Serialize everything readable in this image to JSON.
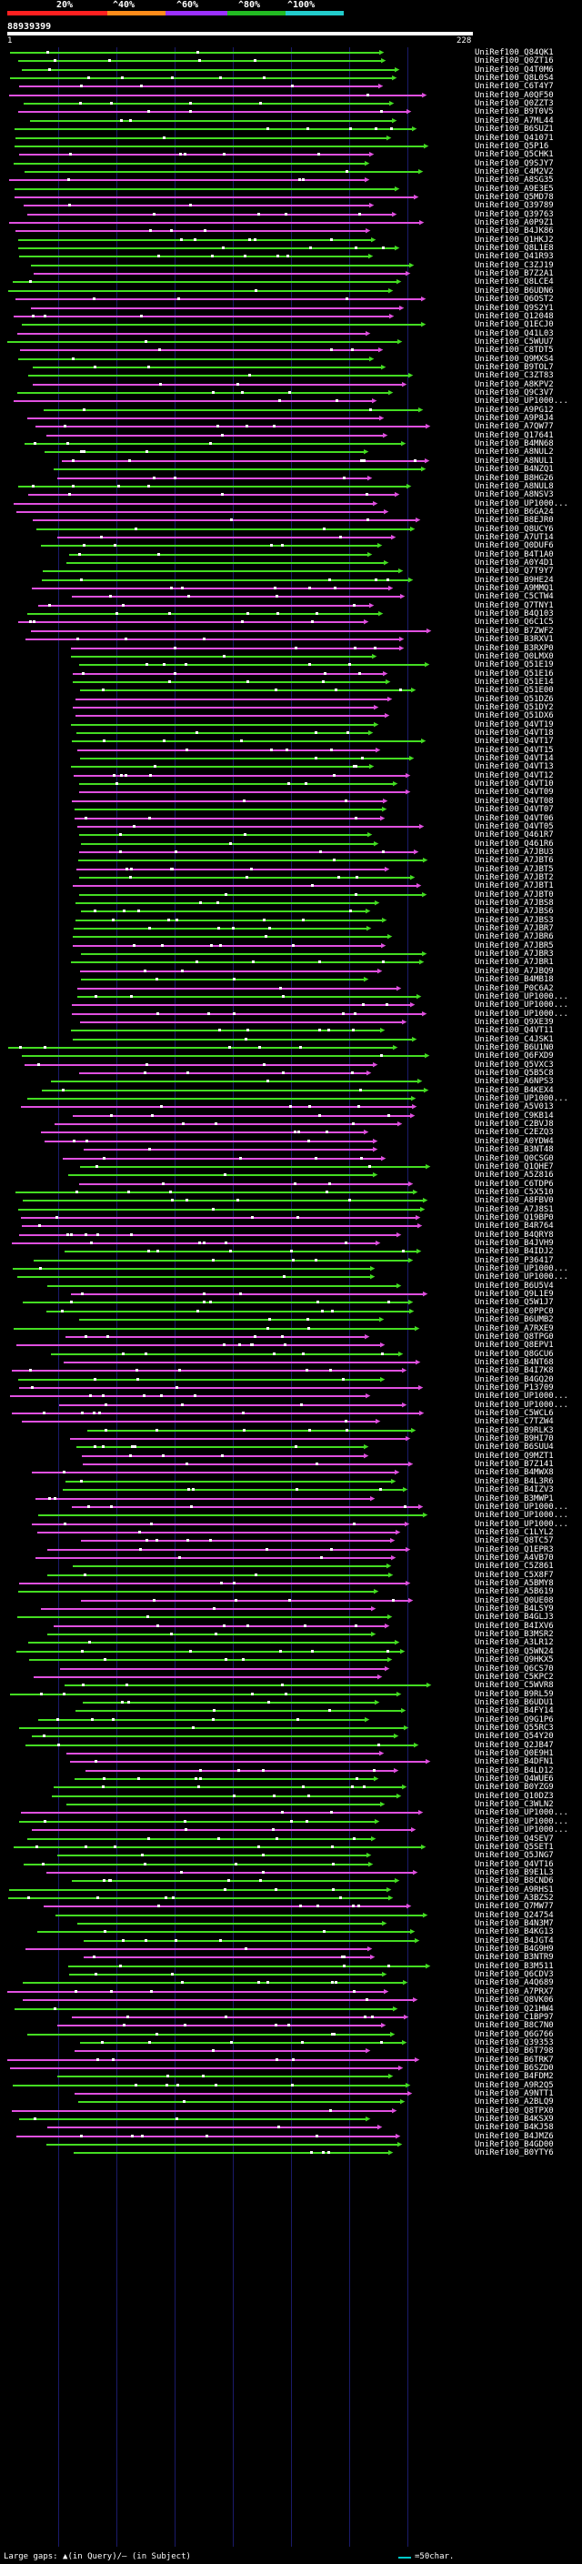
{
  "legend": {
    "labels": [
      "20%",
      "^40%",
      "^60%",
      "^80%",
      "^100%"
    ],
    "colors": [
      "#ff2020",
      "#ff8c1a",
      "#9b30ff",
      "#22bb22",
      "#22cccc"
    ]
  },
  "query": {
    "id": "88939399",
    "start": "1",
    "end": "228"
  },
  "footer": {
    "large_gaps_text": "Large gaps: ▲(in Query)/– (in Subject)",
    "scale_text": "=50char."
  },
  "hit_colors": {
    "green": "#44dd22",
    "magenta": "#e050e0",
    "gap": "#ffffff"
  },
  "hits": [
    "UniRef100_Q84QK1",
    "UniRef100_Q0ZT16",
    "UniRef100_Q4T0M6",
    "UniRef100_Q8L0S4",
    "UniRef100_C6T4Y7",
    "UniRef100_A0QF50",
    "UniRef100_Q0ZZT3",
    "UniRef100_B9T0V5",
    "UniRef100_A7ML44",
    "UniRef100_B6SUZ1",
    "UniRef100_Q41071",
    "UniRef100_Q5P16",
    "UniRef100_Q5CHK1",
    "UniRef100_Q9SJY7",
    "UniRef100_C4M2V2",
    "UniRef100_A8SG35",
    "UniRef100_A9E3E5",
    "UniRef100_Q5MD78",
    "UniRef100_Q39789",
    "UniRef100_Q39763",
    "UniRef100_A0P9Z1",
    "UniRef100_B4JK86",
    "UniRef100_Q1HKJ2",
    "UniRef100_Q8L1E8",
    "UniRef100_Q41R93",
    "UniRef100_C3ZJ19",
    "UniRef100_B7Z2A1",
    "UniRef100_Q8LCE4",
    "UniRef100_B6UDN6",
    "UniRef100_Q6OST2",
    "UniRef100_Q9S2Y1",
    "UniRef100_Q12048",
    "UniRef100_Q1ECJ0",
    "UniRef100_Q41L03",
    "UniRef100_C5WUU7",
    "UniRef100_C8TDT5",
    "UniRef100_Q9MXS4",
    "UniRef100_B9TOL7",
    "UniRef100_C3ZT83",
    "UniRef100_A8KPV2",
    "UniRef100_Q9C3V7",
    "UniRef100_UP1000...",
    "UniRef100_A9PG12",
    "UniRef100_A9P8J4",
    "UniRef100_A7QW77",
    "UniRef100_Q17641",
    "UniRef100_B4MN68",
    "UniRef100_A8NUL2",
    "UniRef100_A8NUL1",
    "UniRef100_B4NZQ1",
    "UniRef100_B8HG26",
    "UniRef100_A8NUL8",
    "UniRef100_A8NSV3",
    "UniRef100_UP1000...",
    "UniRef100_B6GA24",
    "UniRef100_B8EJR0",
    "UniRef100_Q8UCY6",
    "UniRef100_A7UT14",
    "UniRef100_Q0DUF6",
    "UniRef100_B4T1A0",
    "UniRef100_A0Y4D1",
    "UniRef100_Q7T9Y7",
    "UniRef100_B9HE24",
    "UniRef100_A9MMQ1",
    "UniRef100_C5CTW4",
    "UniRef100_Q7TNY1",
    "UniRef100_B4Q103",
    "UniRef100_Q6C1C5",
    "UniRef100_B7ZWF2",
    "UniRef100_B3RXV1",
    "UniRef100_B3RXP0",
    "UniRef100_Q0LMX0",
    "UniRef100_Q51E19",
    "UniRef100_Q51E16",
    "UniRef100_Q51E14",
    "UniRef100_Q51E00",
    "UniRef100_Q51DZ6",
    "UniRef100_Q51DY2",
    "UniRef100_Q51DX6",
    "UniRef100_Q4VT19",
    "UniRef100_Q4VT18",
    "UniRef100_Q4VT17",
    "UniRef100_Q4VT15",
    "UniRef100_Q4VT14",
    "UniRef100_Q4VT13",
    "UniRef100_Q4VT12",
    "UniRef100_Q4VT10",
    "UniRef100_Q4VT09",
    "UniRef100_Q4VT08",
    "UniRef100_Q4VT07",
    "UniRef100_Q4VT06",
    "UniRef100_Q4VT05",
    "UniRef100_Q461R7",
    "UniRef100_Q461R6",
    "UniRef100_A7JBU3",
    "UniRef100_A7JBT6",
    "UniRef100_A7JBT5",
    "UniRef100_A7JBT2",
    "UniRef100_A7JBT1",
    "UniRef100_A7JBT0",
    "UniRef100_A7JBS8",
    "UniRef100_A7JBS6",
    "UniRef100_A7JBS3",
    "UniRef100_A7JBR7",
    "UniRef100_A7JBR6",
    "UniRef100_A7JBR5",
    "UniRef100_A7JBR3",
    "UniRef100_A7JBR1",
    "UniRef100_A7JBQ9",
    "UniRef100_B4MB18",
    "UniRef100_P0C6A2",
    "UniRef100_UP1000...",
    "UniRef100_UP1000...",
    "UniRef100_UP1000...",
    "UniRef100_Q9XE39",
    "UniRef100_Q4VT11",
    "UniRef100_C4JSK1",
    "UniRef100_B6U1N0",
    "UniRef100_Q6FXD9",
    "UniRef100_Q5VXC3",
    "UniRef100_Q5B5C8",
    "UniRef100_A6NPS3",
    "UniRef100_B4KEX4",
    "UniRef100_UP1000...",
    "UniRef100_A5V013",
    "UniRef100_C9KB14",
    "UniRef100_C2BVJ8",
    "UniRef100_C2EZQ3",
    "UniRef100_A0YDW4",
    "UniRef100_B3NT48",
    "UniRef100_Q0CSG0",
    "UniRef100_Q1QHE7",
    "UniRef100_A5Z816",
    "UniRef100_C6TDP6",
    "UniRef100_C5X510",
    "UniRef100_A8FBV0",
    "UniRef100_A7J8S1",
    "UniRef100_Q19BP0",
    "UniRef100_B4R764",
    "UniRef100_B4QRY8",
    "UniRef100_B4JVH9",
    "UniRef100_B4IDJ2",
    "UniRef100_P36417",
    "UniRef100_UP1000...",
    "UniRef100_UP1000...",
    "UniRef100_B6U5V4",
    "UniRef100_Q9L1E9",
    "UniRef100_Q5W1J7",
    "UniRef100_C0PPC0",
    "UniRef100_B6UMB2",
    "UniRef100_A7RXE9",
    "UniRef100_Q8TPG0",
    "UniRef100_Q8EPV1",
    "UniRef100_Q8GCU6",
    "UniRef100_B4NT68",
    "UniRef100_B4I7K8",
    "UniRef100_B4GQ20",
    "UniRef100_P13709",
    "UniRef100_UP1000...",
    "UniRef100_UP1000...",
    "UniRef100_C5WCL6",
    "UniRef100_C7TZW4",
    "UniRef100_B9RLK3",
    "UniRef100_B9HI70",
    "UniRef100_B6SUU4",
    "UniRef100_Q9MZT1",
    "UniRef100_B7Z141",
    "UniRef100_B4MWX8",
    "UniRef100_B4L3R6",
    "UniRef100_B4IZV3",
    "UniRef100_B3MWP1",
    "UniRef100_UP1000...",
    "UniRef100_UP1000...",
    "UniRef100_UP1000...",
    "UniRef100_C1LYL2",
    "UniRef100_Q8TC57",
    "UniRef100_Q1EPR3",
    "UniRef100_A4VB70",
    "UniRef100_C5Z861",
    "UniRef100_C5X8F7",
    "UniRef100_A5BMY8",
    "UniRef100_A5B619",
    "UniRef100_Q0UE08",
    "UniRef100_B4LSY9",
    "UniRef100_B4GLJ3",
    "UniRef100_B4IXV6",
    "UniRef100_B3MSR2",
    "UniRef100_A3LR12",
    "UniRef100_Q5WN24",
    "UniRef100_Q9HKX5",
    "UniRef100_Q6CS70",
    "UniRef100_C5KPC2",
    "UniRef100_C5WVR8",
    "UniRef100_B9RL59",
    "UniRef100_B6UDU1",
    "UniRef100_B4FY14",
    "UniRef100_Q9G1P6",
    "UniRef100_Q55RC3",
    "UniRef100_Q54Y20",
    "UniRef100_Q2JB47",
    "UniRef100_Q0E9H1",
    "UniRef100_B4DFN1",
    "UniRef100_B4LD12",
    "UniRef100_Q4WUE6",
    "UniRef100_B0YZG9",
    "UniRef100_Q10DZ3",
    "UniRef100_C3WLN2",
    "UniRef100_UP1000...",
    "UniRef100_UP1000...",
    "UniRef100_UP1000...",
    "UniRef100_Q4SEV7",
    "UniRef100_Q5SET1",
    "UniRef100_Q5JNG7",
    "UniRef100_Q4VT16",
    "UniRef100_B9E1L3",
    "UniRef100_B8CND6",
    "UniRef100_A9RHS1",
    "UniRef100_A3BZS2",
    "UniRef100_Q7MW77",
    "UniRef100_Q24754",
    "UniRef100_B4N3M7",
    "UniRef100_B4KG13",
    "UniRef100_B4JGT4",
    "UniRef100_B4G9H9",
    "UniRef100_B3NTR9",
    "UniRef100_B3M511",
    "UniRef100_Q6CDV3",
    "UniRef100_A4Q689",
    "UniRef100_A7PRX7",
    "UniRef100_Q8VK06",
    "UniRef100_Q21HW4",
    "UniRef100_C1BP97",
    "UniRef100_B8C7N0",
    "UniRef100_Q6G766",
    "UniRef100_Q39353",
    "UniRef100_B6T798",
    "UniRef100_B6TRK7",
    "UniRef100_B6SZD0",
    "UniRef100_B4FDM2",
    "UniRef100_A9R2Q5",
    "UniRef100_A9NTT1",
    "UniRef100_A2BLQ9",
    "UniRef100_Q8TPX0",
    "UniRef100_B4KSX9",
    "UniRef100_B4KJ58",
    "UniRef100_B4JMZ6",
    "UniRef100_B4GD00",
    "UniRef100_B0YTY6"
  ]
}
